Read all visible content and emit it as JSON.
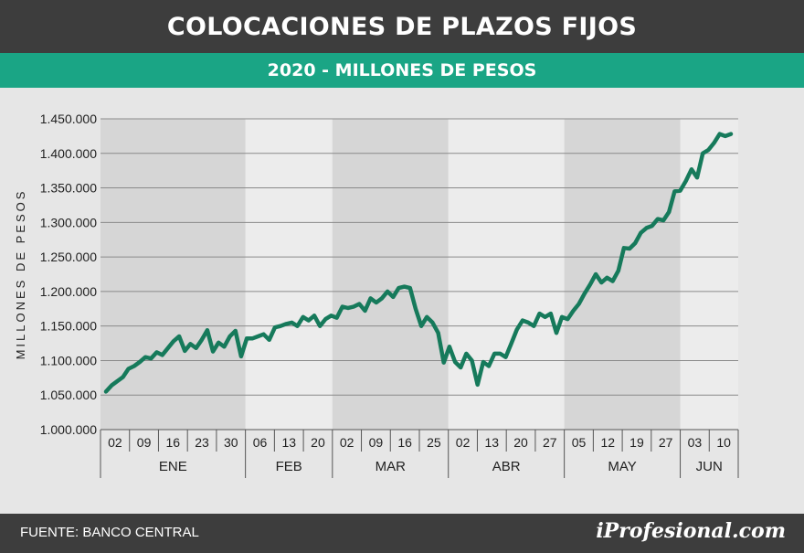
{
  "header": {
    "title": "COLOCACIONES DE PLAZOS FIJOS",
    "subtitle": "2020 - MILLONES DE PESOS"
  },
  "footer": {
    "source": "FUENTE: BANCO CENTRAL",
    "brand": "iProfesional.com"
  },
  "colors": {
    "title_bar": "#3d3d3d",
    "subtitle_bar": "#1aa585",
    "line": "#167a5b",
    "band_dark": "#d6d6d6",
    "band_light": "#ececec"
  },
  "chart_data": {
    "type": "line",
    "title": "COLOCACIONES DE PLAZOS FIJOS",
    "subtitle": "2020 - MILLONES DE PESOS",
    "xlabel": "",
    "ylabel": "MILLONES DE PESOS",
    "ylim": [
      1000000,
      1450000
    ],
    "yticks": [
      1000000,
      1050000,
      1100000,
      1150000,
      1200000,
      1250000,
      1300000,
      1350000,
      1400000,
      1450000
    ],
    "ytick_labels": [
      "1.000.000",
      "1.050.000",
      "1.100.000",
      "1.150.000",
      "1.200.000",
      "1.250.000",
      "1.300.000",
      "1.350.000",
      "1.400.000",
      "1.450.000"
    ],
    "grid": true,
    "legend": "none",
    "months": [
      {
        "label": "ENE",
        "days": [
          "02",
          "09",
          "16",
          "23",
          "30"
        ],
        "shaded": true
      },
      {
        "label": "FEB",
        "days": [
          "06",
          "13",
          "20"
        ],
        "shaded": false
      },
      {
        "label": "MAR",
        "days": [
          "02",
          "09",
          "16",
          "25"
        ],
        "shaded": true
      },
      {
        "label": "ABR",
        "days": [
          "02",
          "13",
          "20",
          "27"
        ],
        "shaded": false
      },
      {
        "label": "MAY",
        "days": [
          "05",
          "12",
          "19",
          "27"
        ],
        "shaded": true
      },
      {
        "label": "JUN",
        "days": [
          "03",
          "10"
        ],
        "shaded": false
      }
    ],
    "series": [
      {
        "values": [
          1055000,
          1064000,
          1070000,
          1076000,
          1088000,
          1092000,
          1098000,
          1105000,
          1103000,
          1112000,
          1108000,
          1118000,
          1128000,
          1135000,
          1114000,
          1124000,
          1118000,
          1130000,
          1144000,
          1113000,
          1126000,
          1120000,
          1135000,
          1143000,
          1106000,
          1132000,
          1132000,
          1135000,
          1138000,
          1130000,
          1148000,
          1150000,
          1153000,
          1155000,
          1150000,
          1163000,
          1158000,
          1165000,
          1150000,
          1160000,
          1165000,
          1162000,
          1178000,
          1176000,
          1178000,
          1182000,
          1172000,
          1190000,
          1184000,
          1190000,
          1200000,
          1192000,
          1205000,
          1207000,
          1205000,
          1175000,
          1150000,
          1163000,
          1155000,
          1140000,
          1097000,
          1120000,
          1098000,
          1090000,
          1110000,
          1100000,
          1065000,
          1098000,
          1092000,
          1110000,
          1110000,
          1105000,
          1125000,
          1145000,
          1158000,
          1155000,
          1150000,
          1168000,
          1163000,
          1168000,
          1140000,
          1163000,
          1160000,
          1172000,
          1182000,
          1197000,
          1210000,
          1225000,
          1213000,
          1220000,
          1215000,
          1230000,
          1263000,
          1262000,
          1270000,
          1285000,
          1292000,
          1295000,
          1305000,
          1303000,
          1315000,
          1345000,
          1346000,
          1360000,
          1377000,
          1365000,
          1400000,
          1405000,
          1415000,
          1428000,
          1425000,
          1428000
        ]
      }
    ]
  }
}
